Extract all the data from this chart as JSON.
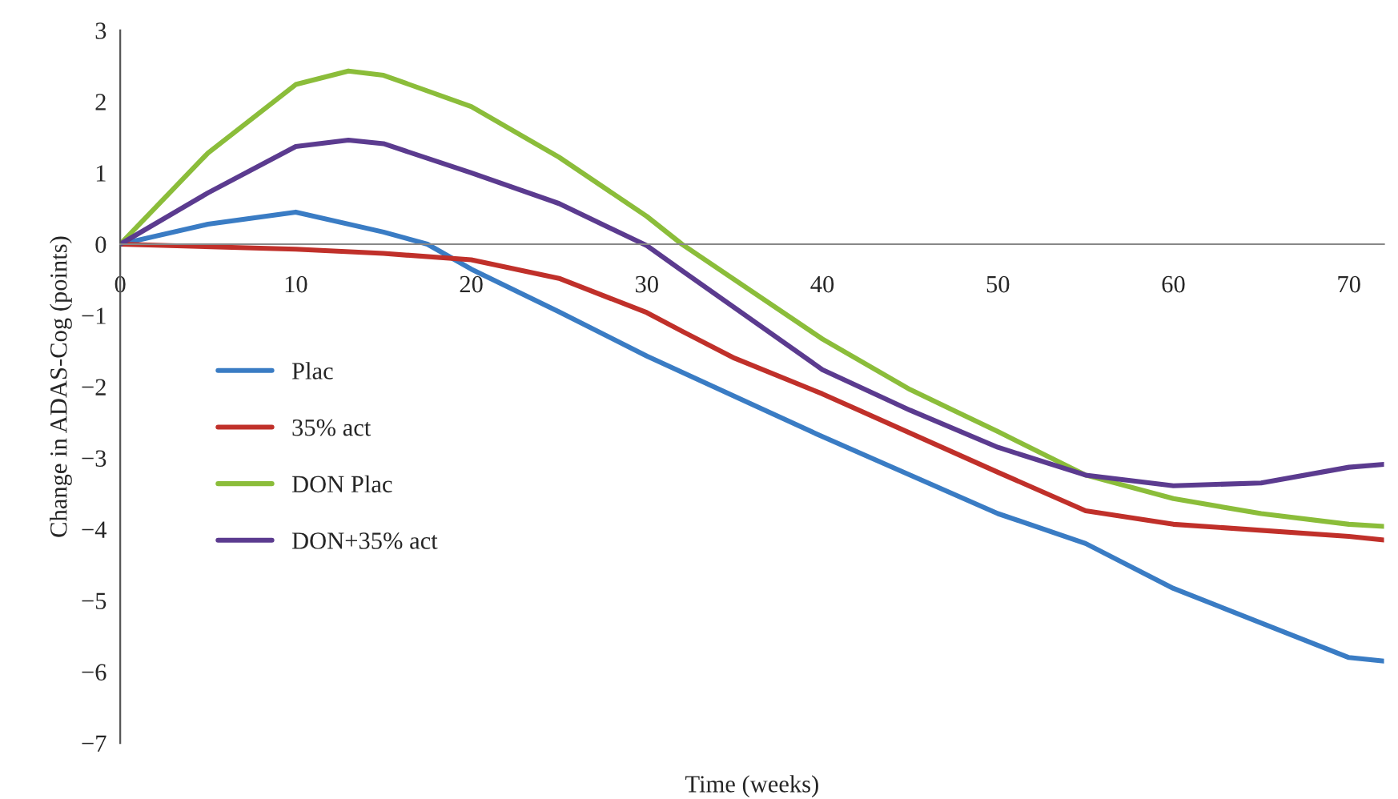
{
  "chart_data": {
    "type": "line",
    "xlabel": "Time (weeks)",
    "ylabel": "Change in ADAS-Cog (points)",
    "xlim": [
      0,
      72
    ],
    "xticks": [
      0,
      10,
      20,
      30,
      40,
      50,
      60,
      70
    ],
    "ylim": [
      -7,
      3
    ],
    "yticks": [
      -7,
      -6,
      -5,
      -4,
      -3,
      -2,
      -1,
      0,
      1,
      2,
      3
    ],
    "grid": false,
    "legend": "left",
    "marker": "none",
    "line_style": "solid",
    "series": [
      {
        "name": "Plac",
        "color": "#3a7cc4",
        "x": [
          0,
          5,
          10,
          15,
          17.5,
          20,
          25,
          30,
          40,
          50,
          55,
          60,
          70,
          72
        ],
        "values": [
          0,
          0.28,
          0.45,
          0.17,
          0,
          -0.35,
          -0.95,
          -1.57,
          -2.7,
          -3.78,
          -4.2,
          -4.83,
          -5.8,
          -5.85
        ]
      },
      {
        "name": "35% act",
        "color": "#c0302a",
        "x": [
          0,
          10,
          15,
          20,
          25,
          30,
          32,
          35,
          40,
          50,
          55,
          60,
          70,
          72
        ],
        "values": [
          0,
          -0.07,
          -0.13,
          -0.22,
          -0.48,
          -0.96,
          -1.22,
          -1.6,
          -2.1,
          -3.2,
          -3.74,
          -3.93,
          -4.1,
          -4.15
        ]
      },
      {
        "name": "DON Plac",
        "color": "#8bbd3a",
        "x": [
          0,
          5,
          10,
          13,
          15,
          20,
          25,
          30,
          32,
          40,
          45,
          50,
          55,
          60,
          65,
          70,
          72
        ],
        "values": [
          0,
          1.28,
          2.24,
          2.43,
          2.37,
          1.93,
          1.22,
          0.39,
          0,
          -1.33,
          -2.04,
          -2.63,
          -3.24,
          -3.57,
          -3.78,
          -3.93,
          -3.96
        ]
      },
      {
        "name": "DON+35% act",
        "color": "#5b3b8f",
        "x": [
          0,
          5,
          10,
          13,
          15,
          20,
          25,
          30,
          32,
          40,
          45,
          50,
          55,
          60,
          65,
          70,
          72
        ],
        "values": [
          0,
          0.72,
          1.37,
          1.46,
          1.41,
          1.0,
          0.57,
          -0.02,
          -0.37,
          -1.76,
          -2.33,
          -2.85,
          -3.24,
          -3.39,
          -3.35,
          -3.13,
          -3.09
        ]
      }
    ]
  }
}
